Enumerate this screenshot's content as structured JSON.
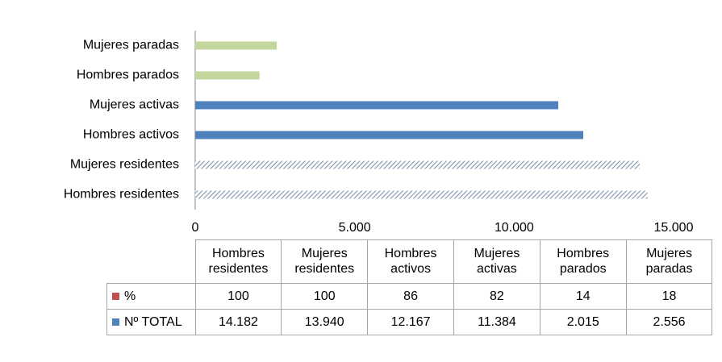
{
  "chart_data": {
    "type": "bar",
    "orientation": "horizontal",
    "categories": [
      "Hombres residentes",
      "Mujeres residentes",
      "Hombres activos",
      "Mujeres activas",
      "Hombres parados",
      "Mujeres paradas"
    ],
    "series": [
      {
        "name": "%",
        "color": "#c0504d",
        "show_bars": false,
        "values": [
          100,
          100,
          86,
          82,
          14,
          18
        ]
      },
      {
        "name": "Nº TOTAL",
        "color": "#4f81bd",
        "show_bars": true,
        "values": [
          14182,
          13940,
          12167,
          11384,
          2015,
          2556
        ],
        "value_labels": [
          "14.182",
          "13.940",
          "12.167",
          "11.384",
          "2.015",
          "2.556"
        ],
        "bar_colors": [
          "#7f93ad",
          "#7f93ad",
          "#4f81bd",
          "#4f81bd",
          "#c3d69b",
          "#c3d69b"
        ],
        "bar_patterns": [
          "hatch",
          "hatch",
          "solid",
          "solid",
          "solid",
          "solid"
        ]
      }
    ],
    "xlim": [
      0,
      15000
    ],
    "xticks": [
      0,
      {
        "value": 5000,
        "label": "5.000"
      },
      {
        "value": 10000,
        "label": "10.000"
      },
      {
        "value": 15000,
        "label": "15.000"
      }
    ],
    "data_table": true
  }
}
